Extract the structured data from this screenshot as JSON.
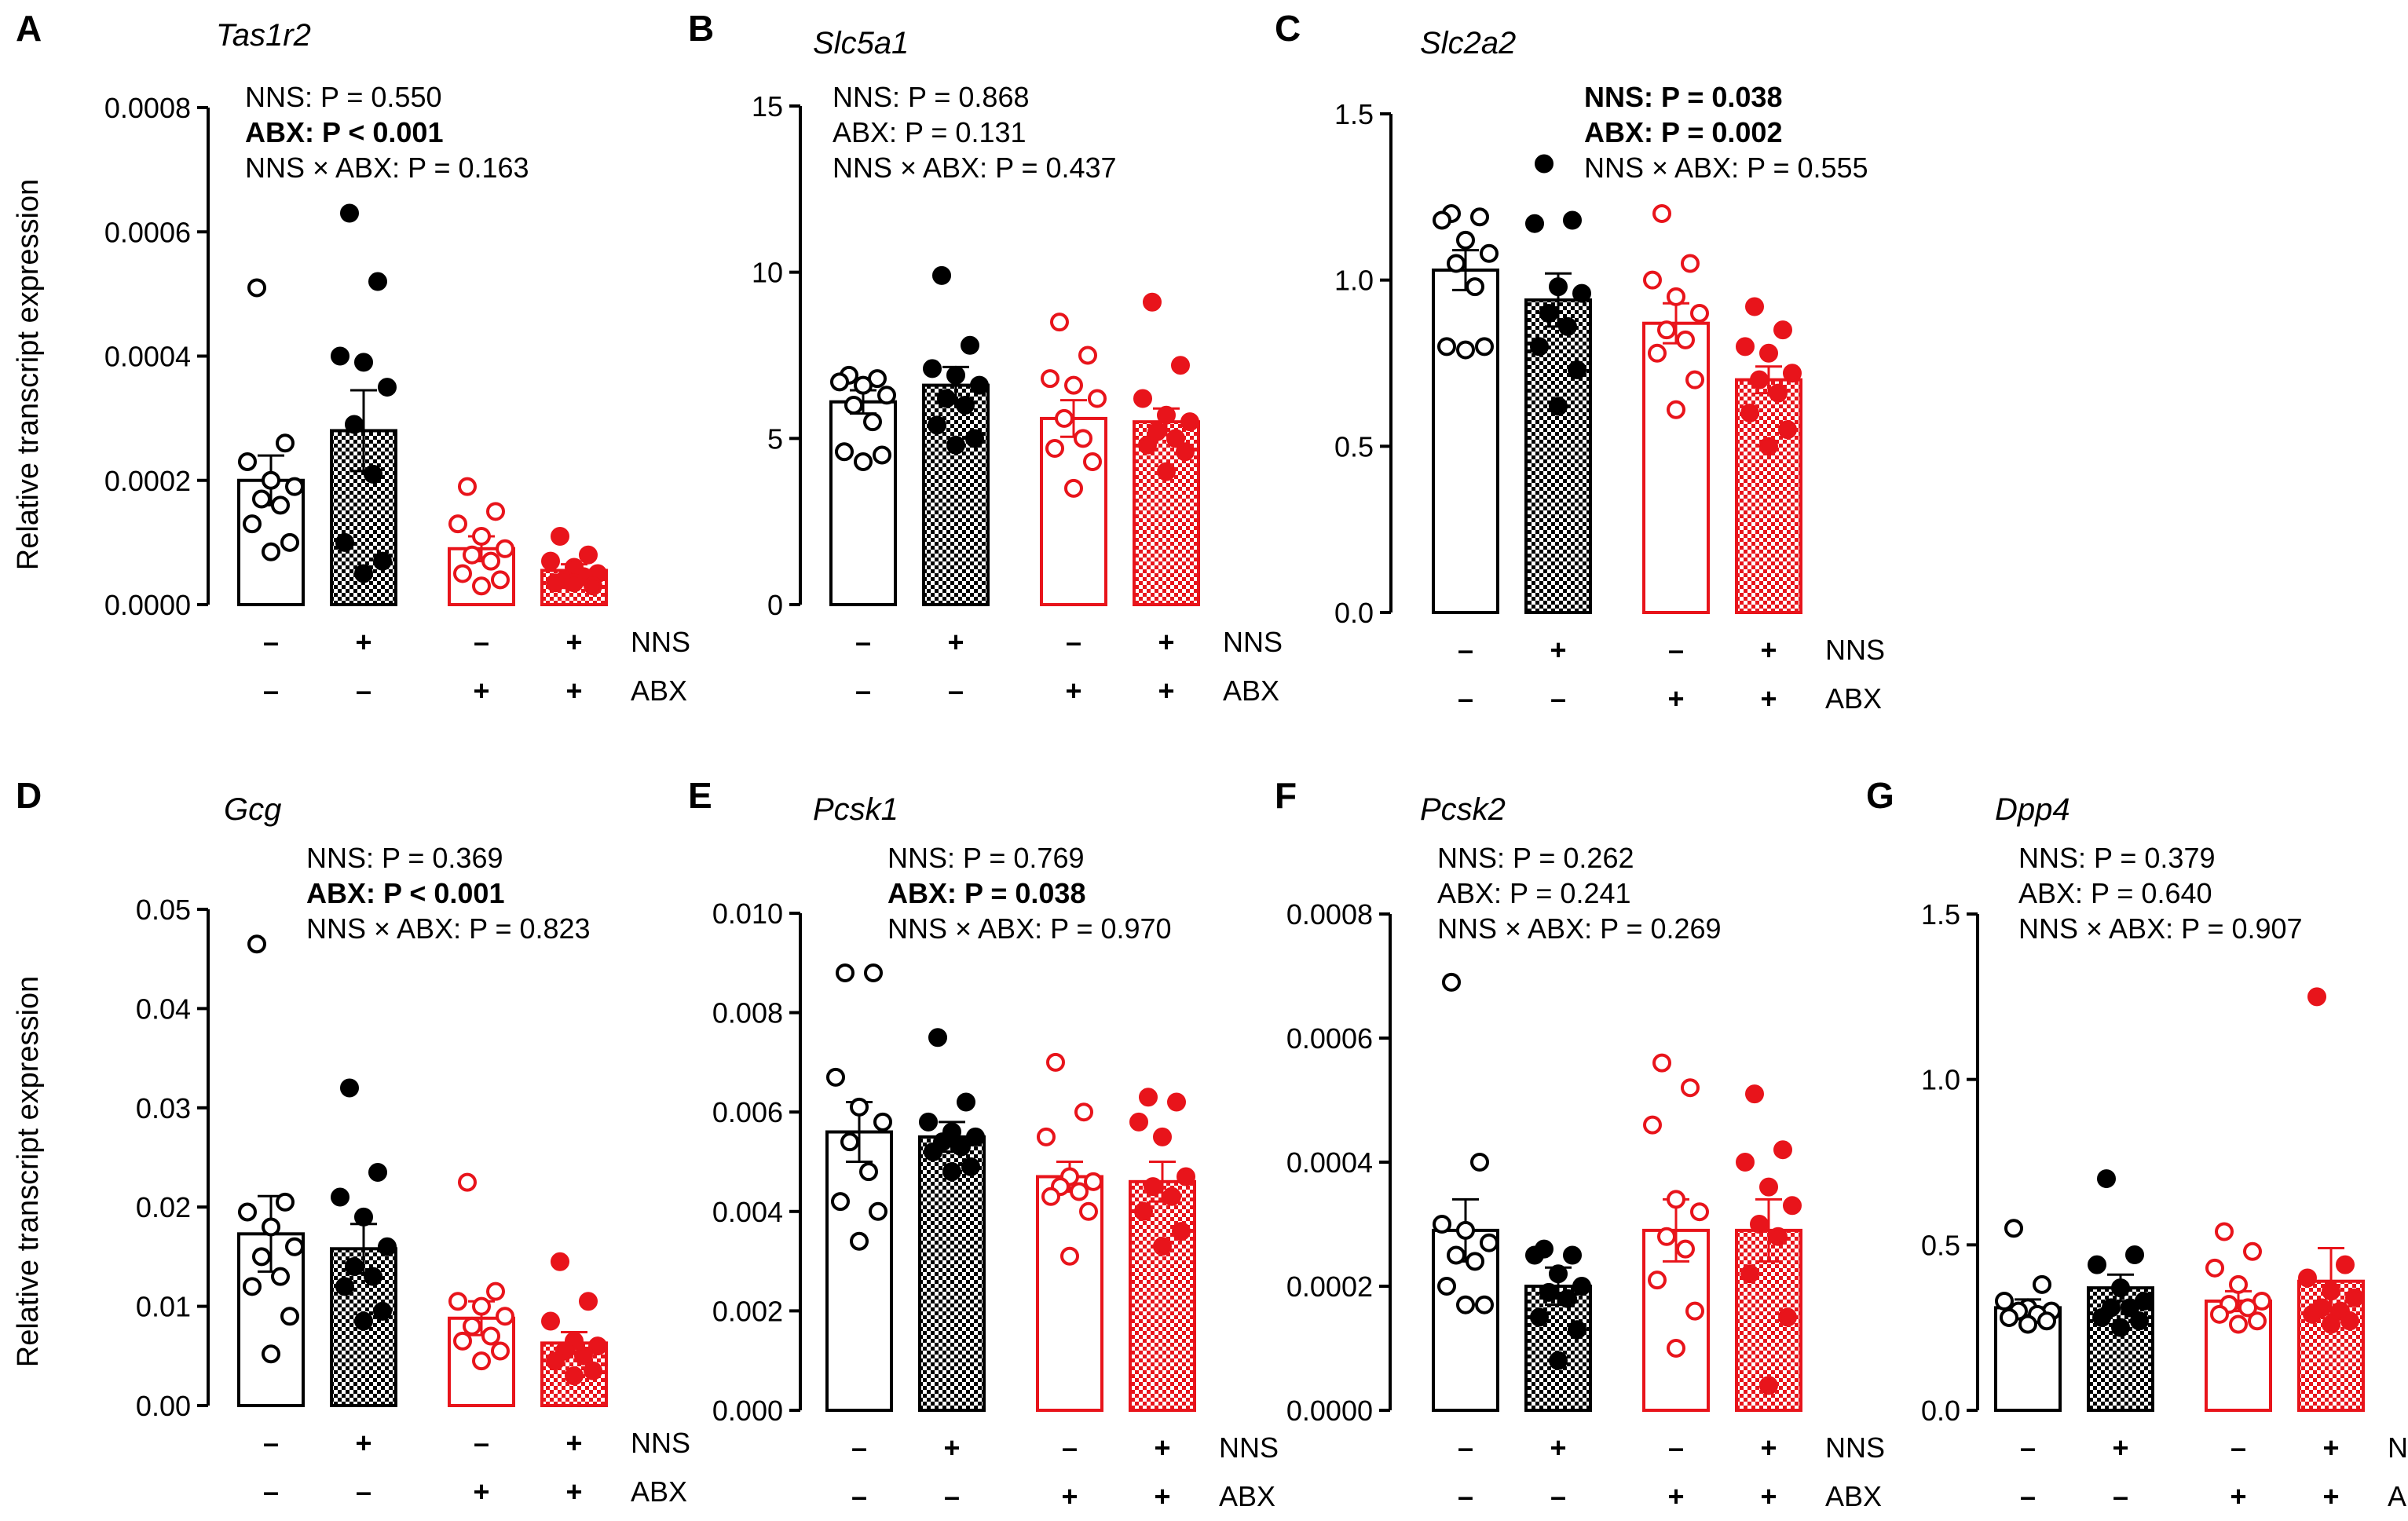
{
  "colors": {
    "control": "#000000",
    "abx": "#e8141b"
  },
  "groups": [
    {
      "nns": "–",
      "abx": "–"
    },
    {
      "nns": "+",
      "abx": "–"
    },
    {
      "nns": "–",
      "abx": "+"
    },
    {
      "nns": "+",
      "abx": "+"
    }
  ],
  "treatment_labels": {
    "nns": "NNS",
    "abx": "ABX"
  },
  "y_axis_label": "Relative transcript expression",
  "chart_data": [
    {
      "panel": "A",
      "gene": "Tas1r2",
      "type": "bar",
      "ylim": [
        0,
        0.0008
      ],
      "yticks": [
        "0.0000",
        "0.0002",
        "0.0004",
        "0.0006",
        "0.0008"
      ],
      "stats": [
        {
          "text": "NNS: P = 0.550",
          "bold": false
        },
        {
          "text": "ABX: P < 0.001",
          "bold": true
        },
        {
          "text": "NNS × ABX: P = 0.163",
          "bold": false
        }
      ],
      "means": [
        0.0002,
        0.00028,
        9e-05,
        5.5e-05
      ],
      "sems": [
        4e-05,
        6.5e-05,
        2e-05,
        1e-05
      ],
      "points": [
        [
          0.00051,
          0.00026,
          0.00023,
          0.0002,
          0.00019,
          0.00017,
          0.00016,
          0.00013,
          0.0001,
          8.5e-05
        ],
        [
          0.00063,
          0.00052,
          0.0004,
          0.00039,
          0.00035,
          0.00029,
          0.00021,
          0.0001,
          7e-05,
          5e-05
        ],
        [
          0.00019,
          0.00015,
          0.00013,
          0.00011,
          9e-05,
          8e-05,
          7e-05,
          5e-05,
          4e-05,
          3e-05
        ],
        [
          0.00011,
          8e-05,
          7e-05,
          6e-05,
          5e-05,
          4e-05,
          4.5e-05,
          3.5e-05,
          3e-05,
          3.5e-05
        ]
      ]
    },
    {
      "panel": "B",
      "gene": "Slc5a1",
      "type": "bar",
      "ylim": [
        0,
        15
      ],
      "yticks": [
        "0",
        "5",
        "10",
        "15"
      ],
      "stats": [
        {
          "text": "NNS: P = 0.868",
          "bold": false
        },
        {
          "text": "ABX: P = 0.131",
          "bold": false
        },
        {
          "text": "NNS × ABX: P = 0.437",
          "bold": false
        }
      ],
      "means": [
        6.1,
        6.6,
        5.6,
        5.5
      ],
      "sems": [
        0.35,
        0.55,
        0.55,
        0.4
      ],
      "points": [
        [
          6.9,
          6.8,
          6.7,
          6.6,
          6.3,
          6.0,
          5.5,
          4.6,
          4.5,
          4.3
        ],
        [
          9.9,
          7.8,
          7.1,
          6.9,
          6.6,
          6.2,
          6.0,
          5.4,
          5.0,
          4.8
        ],
        [
          8.5,
          7.5,
          6.8,
          6.6,
          6.2,
          5.6,
          5.0,
          4.7,
          4.3,
          3.5
        ],
        [
          9.1,
          7.2,
          6.2,
          5.7,
          5.5,
          5.2,
          5.0,
          4.8,
          4.6,
          4.0
        ]
      ]
    },
    {
      "panel": "C",
      "gene": "Slc2a2",
      "type": "bar",
      "ylim": [
        0,
        1.5
      ],
      "yticks": [
        "0.0",
        "0.5",
        "1.0",
        "1.5"
      ],
      "stats": [
        {
          "text": "NNS: P = 0.038",
          "bold": true
        },
        {
          "text": "ABX: P = 0.002",
          "bold": true
        },
        {
          "text": "NNS × ABX: P = 0.555",
          "bold": false
        }
      ],
      "means": [
        1.03,
        0.94,
        0.87,
        0.7
      ],
      "sems": [
        0.06,
        0.08,
        0.06,
        0.04
      ],
      "points": [
        [
          1.2,
          1.19,
          1.18,
          1.12,
          1.08,
          1.05,
          0.98,
          0.8,
          0.8,
          0.79
        ],
        [
          1.35,
          1.18,
          1.17,
          0.98,
          0.96,
          0.9,
          0.86,
          0.8,
          0.73,
          0.62
        ],
        [
          1.2,
          1.05,
          1.0,
          0.95,
          0.9,
          0.85,
          0.82,
          0.78,
          0.7,
          0.61
        ],
        [
          0.92,
          0.85,
          0.8,
          0.78,
          0.72,
          0.7,
          0.66,
          0.6,
          0.55,
          0.5
        ]
      ]
    },
    {
      "panel": "D",
      "gene": "Gcg",
      "type": "bar",
      "ylim": [
        0,
        0.05
      ],
      "yticks": [
        "0.00",
        "0.01",
        "0.02",
        "0.03",
        "0.04",
        "0.05"
      ],
      "stats": [
        {
          "text": "NNS: P = 0.369",
          "bold": false
        },
        {
          "text": "ABX: P < 0.001",
          "bold": true
        },
        {
          "text": "NNS × ABX: P = 0.823",
          "bold": false
        }
      ],
      "means": [
        0.0173,
        0.0158,
        0.0088,
        0.0063
      ],
      "sems": [
        0.0038,
        0.0025,
        0.0017,
        0.0011
      ],
      "points": [
        [
          0.0465,
          0.0205,
          0.0195,
          0.018,
          0.016,
          0.015,
          0.013,
          0.012,
          0.009,
          0.0052
        ],
        [
          0.032,
          0.0235,
          0.021,
          0.019,
          0.016,
          0.014,
          0.013,
          0.012,
          0.0095,
          0.0085
        ],
        [
          0.0225,
          0.0115,
          0.0105,
          0.01,
          0.009,
          0.008,
          0.007,
          0.0065,
          0.0055,
          0.0045
        ],
        [
          0.0145,
          0.0105,
          0.0085,
          0.0065,
          0.006,
          0.0055,
          0.005,
          0.0045,
          0.0035,
          0.003
        ]
      ]
    },
    {
      "panel": "E",
      "gene": "Pcsk1",
      "type": "bar",
      "ylim": [
        0,
        0.01
      ],
      "yticks": [
        "0.000",
        "0.002",
        "0.004",
        "0.006",
        "0.008",
        "0.010"
      ],
      "stats": [
        {
          "text": "NNS: P = 0.769",
          "bold": false
        },
        {
          "text": "ABX: P = 0.038",
          "bold": true
        },
        {
          "text": "NNS × ABX: P = 0.970",
          "bold": false
        }
      ],
      "means": [
        0.0056,
        0.0055,
        0.0047,
        0.0046
      ],
      "sems": [
        0.0006,
        0.0003,
        0.0003,
        0.0004
      ],
      "points": [
        [
          0.0088,
          0.0088,
          0.0067,
          0.0061,
          0.0058,
          0.0054,
          0.0048,
          0.0042,
          0.004,
          0.0034
        ],
        [
          0.0075,
          0.0062,
          0.0058,
          0.0056,
          0.0055,
          0.0054,
          0.0053,
          0.0052,
          0.0049,
          0.0048
        ],
        [
          0.007,
          0.006,
          0.0055,
          0.0047,
          0.0046,
          0.0045,
          0.0044,
          0.0043,
          0.004,
          0.0031
        ],
        [
          0.0063,
          0.0062,
          0.0058,
          0.0055,
          0.0047,
          0.0045,
          0.0043,
          0.004,
          0.0036,
          0.0033
        ]
      ]
    },
    {
      "panel": "F",
      "gene": "Pcsk2",
      "type": "bar",
      "ylim": [
        0,
        0.0008
      ],
      "yticks": [
        "0.0000",
        "0.0002",
        "0.0004",
        "0.0006",
        "0.0008"
      ],
      "stats": [
        {
          "text": "NNS: P = 0.262",
          "bold": false
        },
        {
          "text": "ABX: P = 0.241",
          "bold": false
        },
        {
          "text": "NNS × ABX: P = 0.269",
          "bold": false
        }
      ],
      "means": [
        0.00029,
        0.0002,
        0.00029,
        0.00029
      ],
      "sems": [
        5e-05,
        3e-05,
        5e-05,
        5e-05
      ],
      "points": [
        [
          0.00069,
          0.0004,
          0.0003,
          0.00029,
          0.00027,
          0.00025,
          0.00024,
          0.0002,
          0.00017,
          0.00017
        ],
        [
          0.00026,
          0.00025,
          0.00025,
          0.00022,
          0.0002,
          0.00019,
          0.00018,
          0.00015,
          0.00013,
          8e-05
        ],
        [
          0.00056,
          0.00052,
          0.00046,
          0.00034,
          0.00032,
          0.00028,
          0.00026,
          0.00021,
          0.00016,
          0.0001
        ],
        [
          0.00051,
          0.00042,
          0.0004,
          0.00036,
          0.00033,
          0.0003,
          0.00028,
          0.00022,
          0.00015,
          4e-05
        ]
      ]
    },
    {
      "panel": "G",
      "gene": "Dpp4",
      "type": "bar",
      "ylim": [
        0,
        1.5
      ],
      "yticks": [
        "0.0",
        "0.5",
        "1.0",
        "1.5"
      ],
      "stats": [
        {
          "text": "NNS: P = 0.379",
          "bold": false
        },
        {
          "text": "ABX: P = 0.640",
          "bold": false
        },
        {
          "text": "NNS × ABX: P = 0.907",
          "bold": false
        }
      ],
      "means": [
        0.31,
        0.37,
        0.33,
        0.39
      ],
      "sems": [
        0.025,
        0.04,
        0.03,
        0.1
      ],
      "points": [
        [
          0.55,
          0.38,
          0.33,
          0.31,
          0.3,
          0.3,
          0.29,
          0.28,
          0.27,
          0.26
        ],
        [
          0.7,
          0.47,
          0.44,
          0.37,
          0.33,
          0.31,
          0.31,
          0.28,
          0.27,
          0.25
        ],
        [
          0.54,
          0.48,
          0.43,
          0.38,
          0.33,
          0.32,
          0.31,
          0.29,
          0.27,
          0.26
        ],
        [
          1.25,
          0.44,
          0.4,
          0.36,
          0.34,
          0.31,
          0.3,
          0.29,
          0.27,
          0.26
        ]
      ]
    }
  ]
}
